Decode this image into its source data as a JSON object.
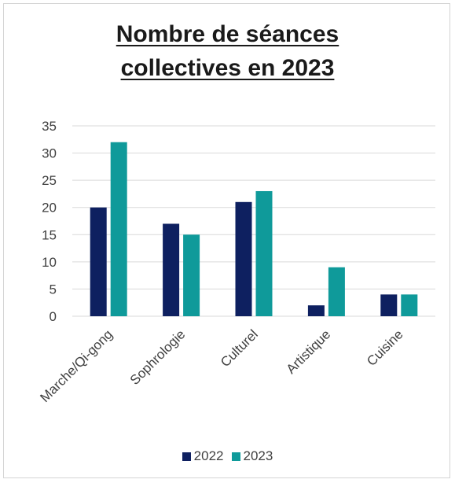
{
  "title_line1": "Nombre de séances",
  "title_line2": "collectives en 2023",
  "chart_data": {
    "type": "bar",
    "title": "Nombre de séances collectives en 2023",
    "categories": [
      "Marche/Qi-gong",
      "Sophrologie",
      "Culturel",
      "Artistique",
      "Cuisine"
    ],
    "series": [
      {
        "name": "2022",
        "values": [
          20,
          17,
          21,
          2,
          4
        ],
        "color": "#0e2060"
      },
      {
        "name": "2023",
        "values": [
          32,
          15,
          23,
          9,
          4
        ],
        "color": "#0f9a9a"
      }
    ],
    "ylim": [
      0,
      35
    ],
    "yticks": [
      0,
      5,
      10,
      15,
      20,
      25,
      30,
      35
    ],
    "grid": true,
    "legend": "bottom"
  }
}
